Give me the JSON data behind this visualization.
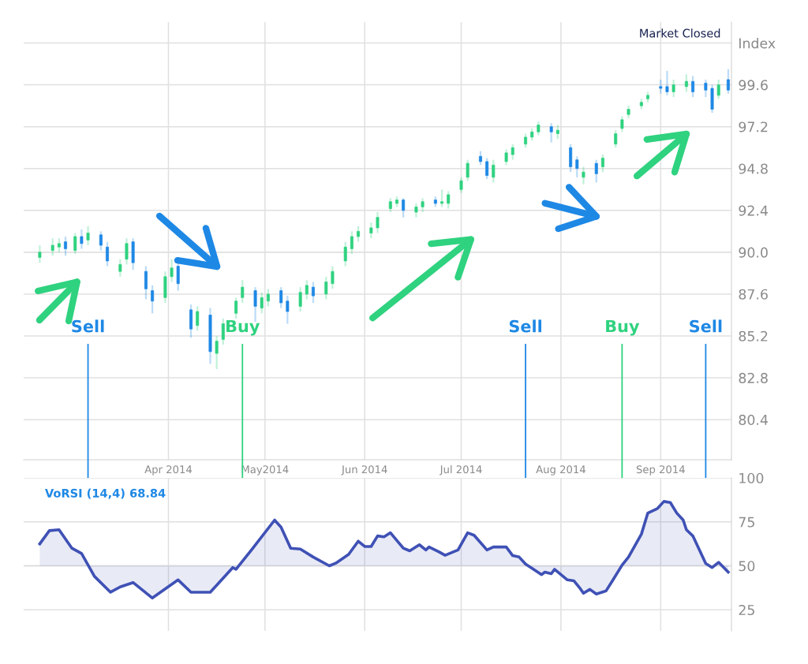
{
  "chart_data": [
    {
      "type": "candlestick",
      "annotations": [
        "Market Closed"
      ],
      "x": [
        "2014-02-20",
        "2014-02-24",
        "2014-02-26",
        "2014-02-28",
        "2014-03-03",
        "2014-03-05",
        "2014-03-07",
        "2014-03-11",
        "2014-03-13",
        "2014-03-17",
        "2014-03-19",
        "2014-03-21",
        "2014-03-25",
        "2014-03-27",
        "2014-03-31",
        "2014-04-02",
        "2014-04-04",
        "2014-04-08",
        "2014-04-10",
        "2014-04-14",
        "2014-04-16",
        "2014-04-18",
        "2014-04-22",
        "2014-04-24",
        "2014-04-28",
        "2014-04-30",
        "2014-05-02",
        "2014-05-06",
        "2014-05-08",
        "2014-05-12",
        "2014-05-14",
        "2014-05-16",
        "2014-05-20",
        "2014-05-22",
        "2014-05-26",
        "2014-05-28",
        "2014-05-30",
        "2014-06-03",
        "2014-06-05",
        "2014-06-09",
        "2014-06-11",
        "2014-06-13",
        "2014-06-17",
        "2014-06-19",
        "2014-06-23",
        "2014-06-25",
        "2014-06-27",
        "2014-07-01",
        "2014-07-03",
        "2014-07-07",
        "2014-07-09",
        "2014-07-11",
        "2014-07-15",
        "2014-07-17",
        "2014-07-21",
        "2014-07-23",
        "2014-07-25",
        "2014-07-29",
        "2014-07-31",
        "2014-08-04",
        "2014-08-06",
        "2014-08-08",
        "2014-08-12",
        "2014-08-14",
        "2014-08-18",
        "2014-08-20",
        "2014-08-22",
        "2014-08-26",
        "2014-08-28",
        "2014-09-01",
        "2014-09-03",
        "2014-09-05",
        "2014-09-09",
        "2014-09-11",
        "2014-09-15",
        "2014-09-17",
        "2014-09-19",
        "2014-09-22"
      ],
      "ohlc": [
        [
          89.7,
          90.4,
          89.4,
          90.0
        ],
        [
          90.1,
          90.8,
          89.8,
          90.4
        ],
        [
          90.3,
          90.8,
          90.0,
          90.5
        ],
        [
          90.6,
          90.9,
          89.8,
          90.2
        ],
        [
          90.1,
          91.1,
          89.9,
          90.9
        ],
        [
          90.9,
          91.3,
          90.2,
          90.5
        ],
        [
          90.7,
          91.5,
          90.4,
          91.1
        ],
        [
          91.0,
          91.2,
          90.1,
          90.4
        ],
        [
          90.3,
          90.6,
          89.2,
          89.5
        ],
        [
          88.9,
          89.6,
          88.6,
          89.3
        ],
        [
          89.6,
          90.8,
          89.3,
          90.5
        ],
        [
          90.6,
          90.8,
          89.0,
          89.4
        ],
        [
          88.9,
          89.2,
          87.3,
          87.9
        ],
        [
          87.8,
          88.1,
          86.5,
          87.2
        ],
        [
          87.4,
          88.9,
          87.1,
          88.6
        ],
        [
          88.6,
          89.6,
          88.3,
          89.1
        ],
        [
          89.2,
          89.5,
          87.8,
          88.2
        ],
        [
          86.7,
          87.0,
          85.1,
          85.6
        ],
        [
          85.8,
          86.9,
          85.5,
          86.6
        ],
        [
          86.4,
          86.8,
          83.6,
          84.3
        ],
        [
          84.2,
          85.2,
          83.3,
          84.9
        ],
        [
          85.0,
          86.2,
          84.7,
          85.9
        ],
        [
          86.5,
          87.4,
          86.2,
          87.2
        ],
        [
          87.4,
          88.4,
          87.1,
          88.0
        ],
        [
          87.8,
          88.0,
          86.0,
          86.9
        ],
        [
          86.8,
          87.7,
          86.5,
          87.4
        ],
        [
          87.2,
          87.9,
          86.9,
          87.6
        ],
        [
          87.8,
          88.0,
          86.8,
          87.1
        ],
        [
          87.2,
          87.5,
          85.9,
          86.6
        ],
        [
          86.9,
          88.0,
          86.6,
          87.7
        ],
        [
          87.6,
          88.4,
          87.3,
          88.1
        ],
        [
          88.0,
          88.3,
          87.1,
          87.5
        ],
        [
          87.6,
          88.6,
          87.3,
          88.3
        ],
        [
          88.2,
          89.2,
          87.9,
          88.9
        ],
        [
          89.5,
          90.6,
          89.2,
          90.3
        ],
        [
          90.2,
          91.2,
          89.9,
          90.9
        ],
        [
          90.9,
          91.5,
          90.6,
          91.2
        ],
        [
          91.1,
          91.7,
          90.8,
          91.4
        ],
        [
          91.4,
          92.3,
          91.1,
          92.0
        ],
        [
          92.5,
          93.1,
          92.3,
          92.9
        ],
        [
          92.8,
          93.2,
          92.6,
          93.0
        ],
        [
          93.0,
          93.1,
          92.0,
          92.4
        ],
        [
          92.3,
          92.8,
          92.0,
          92.6
        ],
        [
          92.6,
          93.1,
          92.3,
          92.9
        ],
        [
          93.0,
          93.2,
          92.6,
          92.8
        ],
        [
          92.8,
          93.6,
          92.6,
          92.9
        ],
        [
          92.8,
          93.5,
          92.5,
          93.3
        ],
        [
          93.6,
          94.3,
          93.4,
          94.1
        ],
        [
          94.3,
          95.3,
          94.1,
          95.1
        ],
        [
          95.5,
          95.8,
          95.0,
          95.2
        ],
        [
          95.2,
          95.4,
          94.2,
          94.4
        ],
        [
          94.3,
          95.3,
          94.0,
          95.0
        ],
        [
          95.2,
          95.9,
          95.0,
          95.7
        ],
        [
          95.6,
          96.2,
          95.3,
          96.0
        ],
        [
          96.2,
          96.8,
          96.0,
          96.6
        ],
        [
          96.6,
          97.1,
          96.4,
          96.9
        ],
        [
          96.9,
          97.5,
          96.7,
          97.3
        ],
        [
          97.2,
          97.4,
          96.3,
          96.9
        ],
        [
          96.8,
          97.3,
          96.5,
          97.0
        ],
        [
          96.0,
          96.2,
          94.6,
          94.9
        ],
        [
          95.3,
          95.5,
          94.3,
          94.8
        ],
        [
          94.3,
          94.9,
          93.9,
          94.6
        ],
        [
          95.1,
          95.3,
          94.0,
          94.5
        ],
        [
          94.9,
          95.6,
          94.6,
          95.4
        ],
        [
          96.2,
          97.0,
          96.0,
          96.8
        ],
        [
          97.1,
          97.8,
          96.9,
          97.6
        ],
        [
          97.9,
          98.4,
          97.7,
          98.2
        ],
        [
          98.4,
          98.8,
          98.2,
          98.6
        ],
        [
          98.8,
          99.2,
          98.6,
          99.0
        ],
        [
          99.5,
          99.9,
          99.1,
          99.4
        ],
        [
          99.5,
          100.4,
          99.0,
          99.2
        ],
        [
          99.2,
          99.9,
          98.9,
          99.6
        ],
        [
          99.5,
          100.2,
          99.2,
          99.8
        ],
        [
          99.8,
          100.1,
          98.9,
          99.2
        ],
        [
          99.7,
          99.9,
          98.9,
          99.3
        ],
        [
          99.4,
          99.6,
          98.0,
          98.2
        ],
        [
          99.0,
          99.9,
          98.8,
          99.6
        ],
        [
          99.9,
          100.5,
          99.1,
          99.3
        ]
      ],
      "colors": [
        "#2fd27f",
        "#2fd27f",
        "#2fd27f",
        "#1e88e5",
        "#2fd27f",
        "#1e88e5",
        "#2fd27f",
        "#1e88e5",
        "#1e88e5",
        "#2fd27f",
        "#2fd27f",
        "#1e88e5",
        "#1e88e5",
        "#1e88e5",
        "#2fd27f",
        "#2fd27f",
        "#1e88e5",
        "#1e88e5",
        "#2fd27f",
        "#1e88e5",
        "#2fd27f",
        "#2fd27f",
        "#2fd27f",
        "#2fd27f",
        "#1e88e5",
        "#2fd27f",
        "#2fd27f",
        "#1e88e5",
        "#1e88e5",
        "#2fd27f",
        "#2fd27f",
        "#1e88e5",
        "#2fd27f",
        "#2fd27f",
        "#2fd27f",
        "#2fd27f",
        "#2fd27f",
        "#2fd27f",
        "#2fd27f",
        "#2fd27f",
        "#2fd27f",
        "#1e88e5",
        "#2fd27f",
        "#2fd27f",
        "#1e88e5",
        "#2fd27f",
        "#2fd27f",
        "#2fd27f",
        "#2fd27f",
        "#1e88e5",
        "#1e88e5",
        "#2fd27f",
        "#2fd27f",
        "#2fd27f",
        "#2fd27f",
        "#2fd27f",
        "#2fd27f",
        "#1e88e5",
        "#2fd27f",
        "#1e88e5",
        "#1e88e5",
        "#2fd27f",
        "#1e88e5",
        "#2fd27f",
        "#2fd27f",
        "#2fd27f",
        "#2fd27f",
        "#2fd27f",
        "#2fd27f",
        "#1e88e5",
        "#1e88e5",
        "#2fd27f",
        "#2fd27f",
        "#1e88e5",
        "#1e88e5",
        "#1e88e5",
        "#2fd27f",
        "#1e88e5"
      ],
      "xlim": [
        "2014-02-15",
        "2014-09-23"
      ],
      "xticks": [
        {
          "value": "2014-04-01",
          "label": "Apr 2014"
        },
        {
          "value": "2014-05-01",
          "label": "May2014"
        },
        {
          "value": "2014-06-01",
          "label": "Jun 2014"
        },
        {
          "value": "2014-07-01",
          "label": "Jul 2014"
        },
        {
          "value": "2014-08-01",
          "label": "Aug 2014"
        },
        {
          "value": "2014-09-01",
          "label": "Sep 2014"
        }
      ],
      "ylim": [
        78.1,
        103.2
      ],
      "yticks": [
        80.4,
        82.8,
        85.2,
        87.6,
        {
          "value": 90,
          "label": "90.0"
        },
        92.4,
        94.8,
        97.2,
        99.6,
        {
          "value": 102.0,
          "label": "Index"
        }
      ],
      "grid": true,
      "ref_lines": [
        {
          "axis": "x",
          "value": "2014-03-07",
          "label": "Sell",
          "color": "#1e88e5"
        },
        {
          "axis": "x",
          "value": "2014-04-24",
          "label": "Buy",
          "color": "#2fd27f"
        },
        {
          "axis": "x",
          "value": "2014-07-21",
          "label": "Sell",
          "color": "#1e88e5"
        },
        {
          "axis": "x",
          "value": "2014-08-20",
          "label": "Buy",
          "color": "#2fd27f"
        },
        {
          "axis": "x",
          "value": "2014-09-15",
          "label": "Sell",
          "color": "#1e88e5"
        }
      ]
    },
    {
      "type": "area",
      "title": "VoRSI (14,4) 68.84",
      "tick_labels": "y",
      "series": [
        {
          "color": "#3f51b5",
          "x": [
            "2014-02-20",
            "2014-02-23",
            "2014-02-26",
            "2014-03-02",
            "2014-03-05",
            "2014-03-09",
            "2014-03-14",
            "2014-03-17",
            "2014-03-21",
            "2014-03-27",
            "2014-04-04",
            "2014-04-08",
            "2014-04-14",
            "2014-04-21",
            "2014-04-22",
            "2014-04-27",
            "2014-05-04",
            "2014-05-06",
            "2014-05-09",
            "2014-05-12",
            "2014-05-16",
            "2014-05-21",
            "2014-05-23",
            "2014-05-27",
            "2014-05-30",
            "2014-06-01",
            "2014-06-03",
            "2014-06-05",
            "2014-06-07",
            "2014-06-09",
            "2014-06-13",
            "2014-06-15",
            "2014-06-18",
            "2014-06-20",
            "2014-06-21",
            "2014-06-24",
            "2014-06-26",
            "2014-06-30",
            "2014-07-03",
            "2014-07-05",
            "2014-07-09",
            "2014-07-11",
            "2014-07-15",
            "2014-07-17",
            "2014-07-19",
            "2014-07-21",
            "2014-07-26",
            "2014-07-27",
            "2014-07-29",
            "2014-07-30",
            "2014-08-03",
            "2014-08-05",
            "2014-08-07",
            "2014-08-08",
            "2014-08-10",
            "2014-08-12",
            "2014-08-15",
            "2014-08-17",
            "2014-08-20",
            "2014-08-22",
            "2014-08-26",
            "2014-08-28",
            "2014-08-31",
            "2014-09-02",
            "2014-09-04",
            "2014-09-06",
            "2014-09-08",
            "2014-09-09",
            "2014-09-11",
            "2014-09-15",
            "2014-09-17",
            "2014-09-19",
            "2014-09-22"
          ],
          "values": [
            62.5,
            70,
            70.5,
            60,
            57,
            44,
            35,
            38,
            40.5,
            31.7,
            42,
            35,
            35,
            49,
            48,
            59.5,
            76,
            72,
            60,
            59.5,
            55,
            50,
            51.5,
            56.5,
            64,
            61,
            61,
            67,
            66.5,
            68.8,
            60,
            58.5,
            62,
            59,
            60.7,
            58,
            56,
            59,
            68.8,
            67.4,
            59,
            60.7,
            60.7,
            55.8,
            55,
            51,
            45,
            46.4,
            45.5,
            48,
            42,
            41.5,
            37,
            34.4,
            36.6,
            34,
            35.7,
            41.5,
            50.4,
            55,
            68,
            80,
            82.6,
            86.6,
            86,
            80,
            76,
            70.5,
            67,
            51.3,
            49,
            52,
            46.4
          ]
        }
      ],
      "xlim": [
        "2014-02-15",
        "2014-09-23"
      ],
      "xticks": [
        {
          "value": "2014-04-01",
          "label": null
        },
        {
          "value": "2014-05-01",
          "label": null
        },
        {
          "value": "2014-06-01",
          "label": null
        },
        {
          "value": "2014-07-01",
          "label": null
        },
        {
          "value": "2014-08-01",
          "label": null
        },
        {
          "value": "2014-09-01",
          "label": null
        }
      ],
      "ylim": [
        13,
        100
      ],
      "yticks": [
        25,
        50,
        75,
        100
      ],
      "grid": true,
      "ref_lines": [
        {
          "axis": "y",
          "value": 50,
          "color": "#dcdcdc"
        }
      ]
    }
  ]
}
